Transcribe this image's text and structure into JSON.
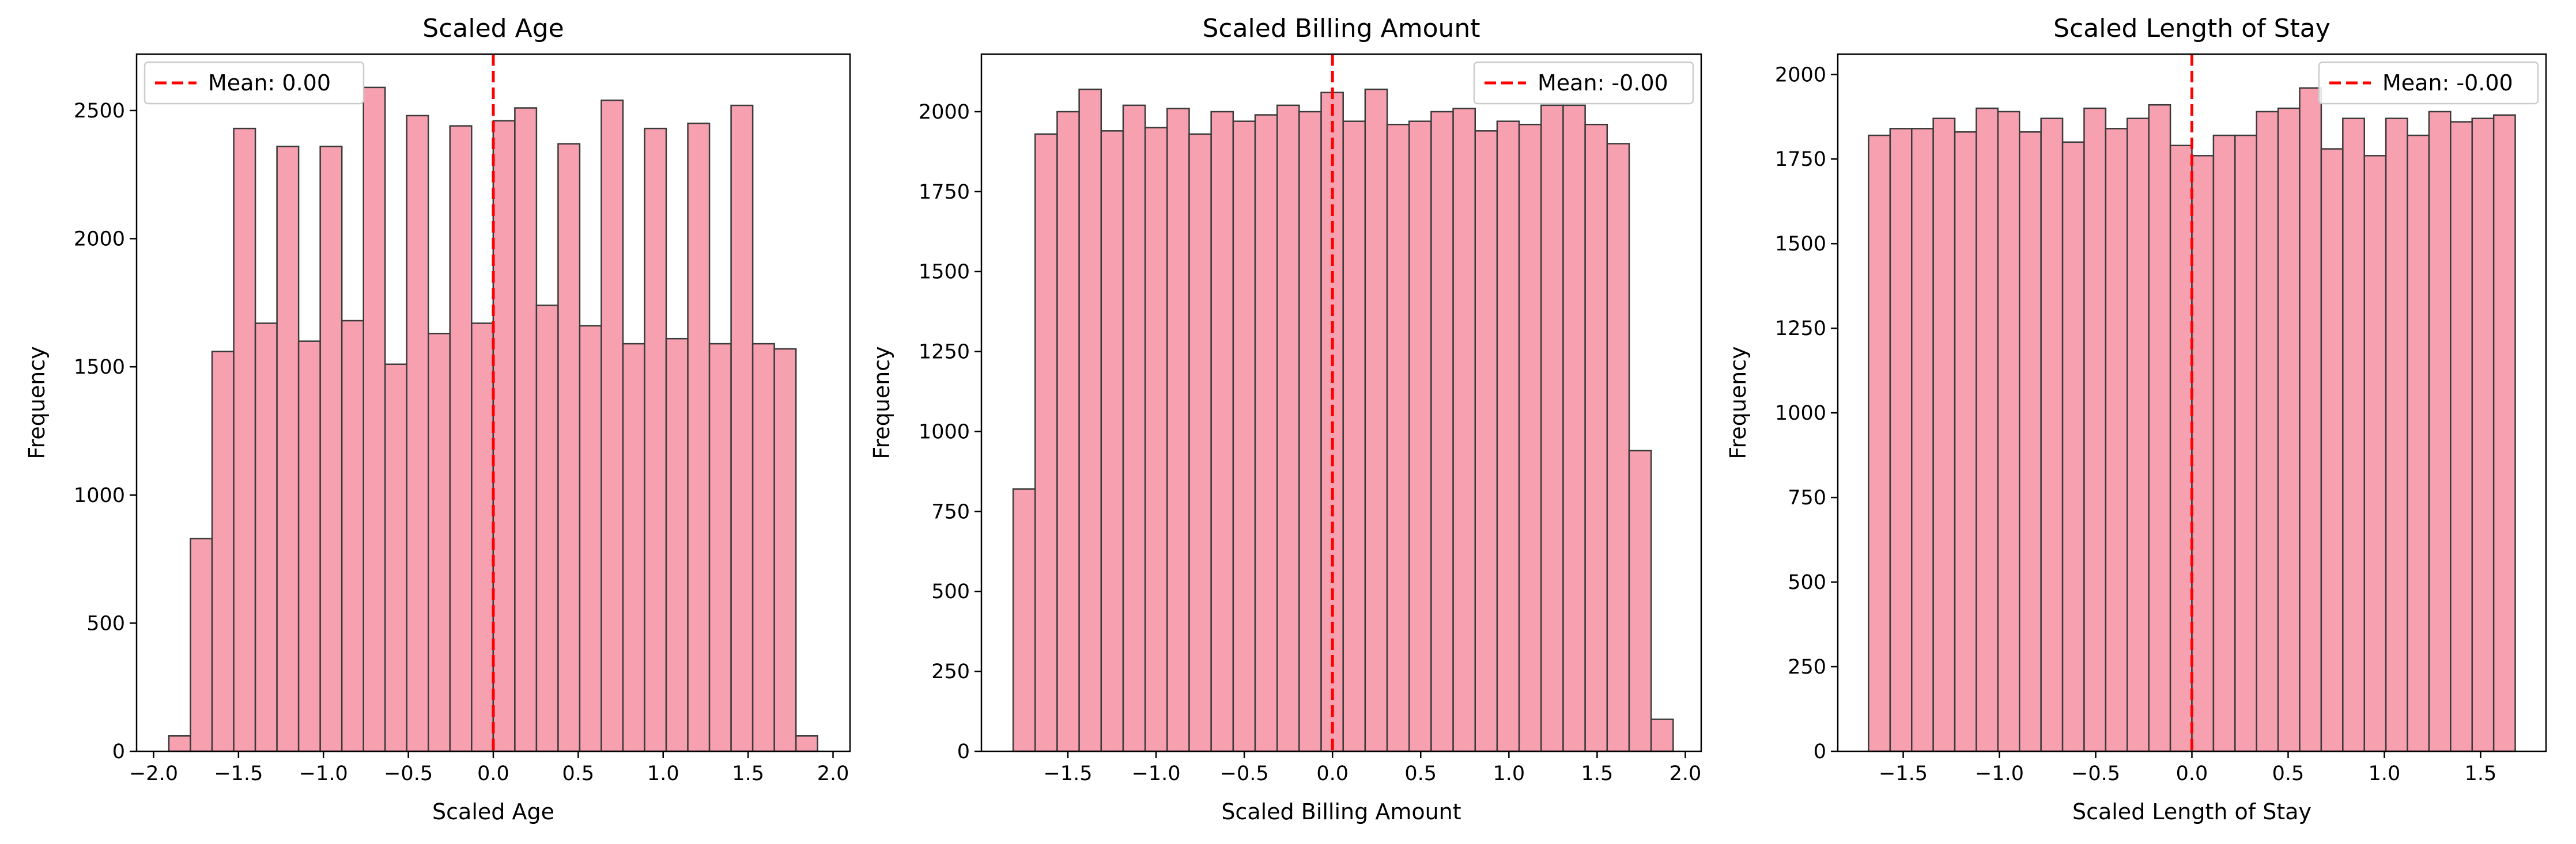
{
  "chart_data": [
    {
      "type": "bar",
      "title": "Scaled Age",
      "xlabel": "Scaled Age",
      "ylabel": "Frequency",
      "xlim": [
        -2.1,
        2.1
      ],
      "ylim": [
        0,
        2720
      ],
      "xticks": [
        -2.0,
        -1.5,
        -1.0,
        -0.5,
        0.0,
        0.5,
        1.0,
        1.5,
        2.0
      ],
      "xtick_labels": [
        "−2.0",
        "−1.5",
        "−1.0",
        "−0.5",
        "0.0",
        "0.5",
        "1.0",
        "1.5",
        "2.0"
      ],
      "yticks": [
        0,
        500,
        1000,
        1500,
        2000,
        2500
      ],
      "ytick_labels": [
        "0",
        "500",
        "1000",
        "1500",
        "2000",
        "2500"
      ],
      "bin_start": -1.91,
      "bin_width": 0.1273,
      "values": [
        60,
        830,
        1560,
        2430,
        1670,
        2360,
        1600,
        2360,
        1680,
        2590,
        1510,
        2480,
        1630,
        2440,
        1670,
        2460,
        2510,
        1740,
        2370,
        1660,
        2540,
        1590,
        2430,
        1610,
        2450,
        1590,
        2520,
        1590,
        1570,
        60
      ],
      "mean": 0.0,
      "legend_label": "Mean: 0.00",
      "legend_position": "upper-left",
      "grid": false,
      "bar_color": "#f7a1b0",
      "mean_color": "#ff0000"
    },
    {
      "type": "bar",
      "title": "Scaled Billing Amount",
      "xlabel": "Scaled Billing Amount",
      "ylabel": "Frequency",
      "xlim": [
        -1.99,
        2.09
      ],
      "ylim": [
        0,
        2180
      ],
      "xticks": [
        -1.5,
        -1.0,
        -0.5,
        0.0,
        0.5,
        1.0,
        1.5,
        2.0
      ],
      "xtick_labels": [
        "−1.5",
        "−1.0",
        "−0.5",
        "0.0",
        "0.5",
        "1.0",
        "1.5",
        "2.0"
      ],
      "yticks": [
        0,
        250,
        500,
        750,
        1000,
        1250,
        1500,
        1750,
        2000
      ],
      "ytick_labels": [
        "0",
        "250",
        "500",
        "750",
        "1000",
        "1250",
        "1500",
        "1750",
        "2000"
      ],
      "bin_start": -1.81,
      "bin_width": 0.1247,
      "values": [
        820,
        1930,
        2000,
        2070,
        1940,
        2020,
        1950,
        2010,
        1930,
        2000,
        1970,
        1990,
        2020,
        2000,
        2060,
        1970,
        2070,
        1960,
        1970,
        2000,
        2010,
        1940,
        1970,
        1960,
        2020,
        2020,
        1960,
        1900,
        940,
        100
      ],
      "mean": 0.0,
      "legend_label": "Mean: -0.00",
      "legend_position": "upper-right",
      "grid": false,
      "bar_color": "#f7a1b0",
      "mean_color": "#ff0000"
    },
    {
      "type": "bar",
      "title": "Scaled Length of Stay",
      "xlabel": "Scaled Length of Stay",
      "ylabel": "Frequency",
      "xlim": [
        -1.84,
        1.84
      ],
      "ylim": [
        0,
        2060
      ],
      "xticks": [
        -1.5,
        -1.0,
        -0.5,
        0.0,
        0.5,
        1.0,
        1.5
      ],
      "xtick_labels": [
        "−1.5",
        "−1.0",
        "−0.5",
        "0.0",
        "0.5",
        "1.0",
        "1.5"
      ],
      "yticks": [
        0,
        250,
        500,
        750,
        1000,
        1250,
        1500,
        1750,
        2000
      ],
      "ytick_labels": [
        "0",
        "250",
        "500",
        "750",
        "1000",
        "1250",
        "1500",
        "1750",
        "2000"
      ],
      "bin_start": -1.68,
      "bin_width": 0.112,
      "values": [
        1820,
        1840,
        1840,
        1870,
        1830,
        1900,
        1890,
        1830,
        1870,
        1800,
        1900,
        1840,
        1870,
        1910,
        1790,
        1760,
        1820,
        1820,
        1890,
        1900,
        1960,
        1780,
        1870,
        1760,
        1870,
        1820,
        1890,
        1860,
        1870,
        1880
      ],
      "mean": 0.0,
      "legend_label": "Mean: -0.00",
      "legend_position": "upper-right",
      "grid": false,
      "bar_color": "#f7a1b0",
      "mean_color": "#ff0000"
    }
  ]
}
